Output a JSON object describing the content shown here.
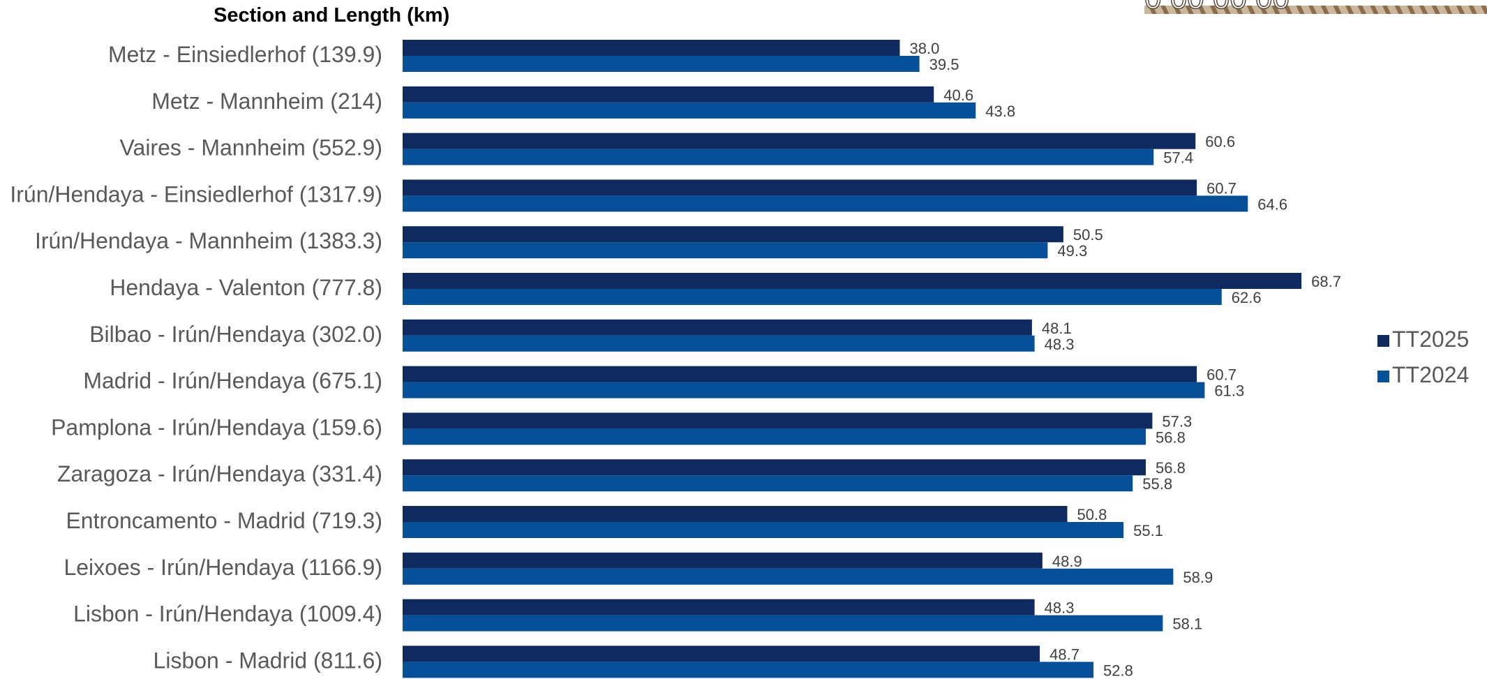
{
  "chart_data": {
    "type": "bar",
    "orientation": "horizontal",
    "title": "",
    "ylabel": "Section and Length (km)",
    "xlabel": "",
    "categories": [
      "Metz - Einsiedlerhof (139.9)",
      "Metz - Mannheim (214)",
      "Vaires - Mannheim (552.9)",
      "Irún/Hendaya - Einsiedlerhof (1317.9)",
      "Irún/Hendaya - Mannheim (1383.3)",
      "Hendaya - Valenton (777.8)",
      "Bilbao - Irún/Hendaya (302.0)",
      "Madrid - Irún/Hendaya (675.1)",
      "Pamplona - Irún/Hendaya (159.6)",
      "Zaragoza - Irún/Hendaya (331.4)",
      "Entroncamento - Madrid (719.3)",
      "Leixoes - Irún/Hendaya (1166.9)",
      "Lisbon - Irún/Hendaya (1009.4)",
      "Lisbon - Madrid (811.6)"
    ],
    "series": [
      {
        "name": "TT2025",
        "color": "#0e2a5f",
        "values": [
          38.0,
          40.6,
          60.6,
          60.7,
          50.5,
          68.7,
          48.1,
          60.7,
          57.3,
          56.8,
          50.8,
          48.9,
          48.3,
          48.7
        ],
        "labels": [
          "38.0",
          "40.6",
          "60.6",
          "60.7",
          "50.5",
          "68.7",
          "48.1",
          "60.7",
          "57.3",
          "56.8",
          "50.8",
          "48.9",
          "48.3",
          "48.7"
        ]
      },
      {
        "name": "TT2024",
        "color": "#064f99",
        "values": [
          39.5,
          43.8,
          57.4,
          64.6,
          49.3,
          62.6,
          48.3,
          61.3,
          56.8,
          55.8,
          55.1,
          58.9,
          58.1,
          52.8
        ],
        "labels": [
          "39.5",
          "43.8",
          "57.4",
          "64.6",
          "49.3",
          "62.6",
          "48.3",
          "61.3",
          "56.8",
          "55.8",
          "55.1",
          "58.9",
          "58.1",
          "52.8"
        ]
      }
    ],
    "xlim": [
      0,
      100
    ],
    "grid": false,
    "legend": "right"
  }
}
